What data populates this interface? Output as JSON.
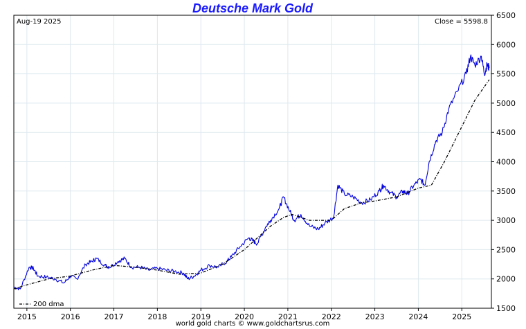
{
  "chart_data": {
    "type": "line",
    "title": "Deutsche Mark Gold",
    "date_label": "Aug-19  2025",
    "close_label": "Close = 5598.8",
    "credit": "world gold charts © www.goldchartsrus.com",
    "legend": {
      "label": "200 dma",
      "placement": "bottom-left"
    },
    "x_ticks": [
      "2015",
      "2016",
      "2017",
      "2018",
      "2019",
      "2020",
      "2021",
      "2022",
      "2023",
      "2024",
      "2025"
    ],
    "xlim": [
      2014.7,
      2025.68
    ],
    "ylim": [
      1500,
      6500
    ],
    "y_ticks": [
      1500,
      2000,
      2500,
      3000,
      3500,
      4000,
      4500,
      5000,
      5500,
      6000,
      6500
    ],
    "y_axis_side": "right",
    "grid": true,
    "colors": {
      "price": "#0000dd",
      "dma": "#000000",
      "title": "#1a1aff",
      "grid": "#dde8ee"
    },
    "series": [
      {
        "name": "",
        "style": "solid",
        "x": [
          2014.7,
          2014.85,
          2015.05,
          2015.15,
          2015.25,
          2015.45,
          2015.65,
          2015.85,
          2016.0,
          2016.15,
          2016.35,
          2016.5,
          2016.6,
          2016.8,
          2016.9,
          2017.1,
          2017.25,
          2017.4,
          2017.6,
          2017.8,
          2018.0,
          2018.2,
          2018.4,
          2018.6,
          2018.7,
          2018.85,
          2019.0,
          2019.2,
          2019.4,
          2019.6,
          2019.7,
          2019.9,
          2020.1,
          2020.2,
          2020.3,
          2020.5,
          2020.6,
          2020.8,
          2020.9,
          2021.05,
          2021.15,
          2021.3,
          2021.5,
          2021.7,
          2021.85,
          2022.05,
          2022.15,
          2022.3,
          2022.5,
          2022.7,
          2022.9,
          2023.1,
          2023.2,
          2023.35,
          2023.5,
          2023.65,
          2023.75,
          2023.9,
          2024.05,
          2024.15,
          2024.25,
          2024.4,
          2024.55,
          2024.7,
          2024.9,
          2025.1,
          2025.2,
          2025.3,
          2025.45,
          2025.52,
          2025.58,
          2025.63
        ],
        "y": [
          1860,
          1830,
          2200,
          2180,
          2050,
          2030,
          2000,
          1930,
          2050,
          2000,
          2250,
          2300,
          2350,
          2230,
          2200,
          2300,
          2350,
          2200,
          2200,
          2150,
          2180,
          2150,
          2130,
          2100,
          2000,
          2050,
          2150,
          2230,
          2200,
          2300,
          2380,
          2550,
          2700,
          2650,
          2600,
          2900,
          3000,
          3200,
          3400,
          3150,
          3000,
          3100,
          2900,
          2850,
          2950,
          3050,
          3600,
          3450,
          3400,
          3300,
          3350,
          3500,
          3600,
          3480,
          3400,
          3500,
          3450,
          3600,
          3700,
          3600,
          4000,
          4350,
          4500,
          4900,
          5200,
          5500,
          5800,
          5650,
          5800,
          5500,
          5650,
          5598.8
        ]
      },
      {
        "name": "200 dma",
        "style": "dashdot",
        "x": [
          2014.7,
          2015.0,
          2015.5,
          2016.0,
          2016.5,
          2017.0,
          2017.5,
          2018.0,
          2018.5,
          2019.0,
          2019.5,
          2020.0,
          2020.3,
          2020.6,
          2020.9,
          2021.1,
          2021.5,
          2022.0,
          2022.3,
          2022.7,
          2023.0,
          2023.5,
          2024.0,
          2024.3,
          2024.6,
          2025.0,
          2025.3,
          2025.63
        ],
        "y": [
          1830,
          1900,
          2000,
          2050,
          2150,
          2230,
          2200,
          2150,
          2080,
          2100,
          2250,
          2500,
          2700,
          2900,
          3050,
          3100,
          3000,
          3000,
          3200,
          3300,
          3330,
          3400,
          3550,
          3600,
          4000,
          4600,
          5050,
          5400
        ]
      }
    ]
  }
}
